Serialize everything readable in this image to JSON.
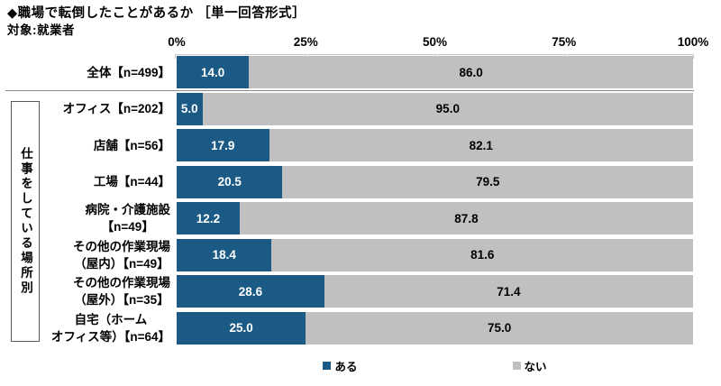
{
  "header": {
    "title": "◆職場で転倒したことがあるか ［単一回答形式］",
    "subtitle": "対象:就業者"
  },
  "chart_data": {
    "type": "bar",
    "stacked": true,
    "orientation": "horizontal",
    "unit": "%",
    "xlim": [
      0,
      100
    ],
    "x_ticks": [
      "0%",
      "25%",
      "50%",
      "75%",
      "100%"
    ],
    "grid": false,
    "legend_position": "bottom",
    "group_label": "仕事をしている場所別",
    "categories": [
      "全体【n=499】",
      "オフィス【n=202】",
      "店舗【n=56】",
      "工場【n=44】",
      "病院・介護施設\n【n=49】",
      "その他の作業現場\n（屋内）【n=49】",
      "その他の作業現場\n（屋外）【n=35】",
      "自宅（ホーム\nオフィス等）【n=64】"
    ],
    "series": [
      {
        "name": "ある",
        "color": "#1a5a85",
        "values": [
          "14.0",
          "5.0",
          "17.9",
          "20.5",
          "12.2",
          "18.4",
          "28.6",
          "25.0"
        ]
      },
      {
        "name": "ない",
        "color": "#c0c0c0",
        "values": [
          "86.0",
          "95.0",
          "82.1",
          "79.5",
          "87.8",
          "81.6",
          "71.4",
          "75.0"
        ]
      }
    ]
  }
}
